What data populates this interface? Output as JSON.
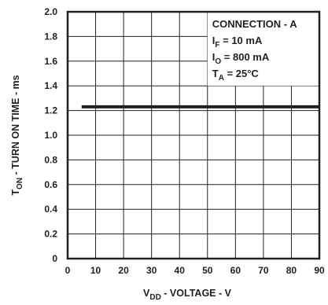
{
  "chart_data": {
    "type": "line",
    "x_range": [
      0,
      90
    ],
    "y_range": [
      0,
      2.0
    ],
    "x_ticks": [
      "0",
      "10",
      "20",
      "30",
      "40",
      "50",
      "60",
      "70",
      "80",
      "90"
    ],
    "y_ticks": [
      "0",
      "0.2",
      "0.4",
      "0.6",
      "0.8",
      "1.0",
      "1.2",
      "1.4",
      "1.6",
      "1.8",
      "2.0"
    ],
    "xlabel": {
      "main": "V",
      "sub": "DD",
      "rest": " - VOLTAGE - V"
    },
    "ylabel": {
      "main": "T",
      "sub": "ON",
      "rest": " - TURN ON TIME - ms"
    },
    "grid": true,
    "series": [
      {
        "x": [
          5,
          90
        ],
        "y": [
          1.23,
          1.23
        ]
      }
    ],
    "annotations": [
      {
        "main": "CONNECTION - A",
        "sub": "",
        "rest": ""
      },
      {
        "main": "I",
        "sub": "F",
        "rest": " = 10 mA"
      },
      {
        "main": "I",
        "sub": "O",
        "rest": " = 800 mA"
      },
      {
        "main": "T",
        "sub": "A",
        "rest": " = 25°C"
      }
    ]
  },
  "colors": {
    "ink": "#231f20",
    "background": "#ffffff"
  }
}
